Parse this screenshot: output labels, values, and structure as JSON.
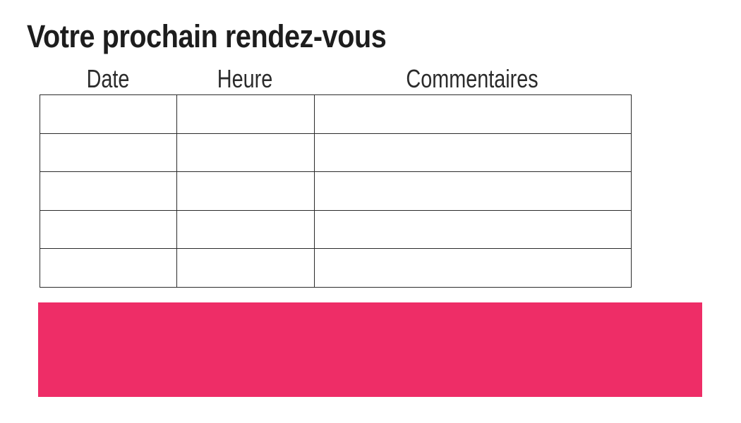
{
  "slide": {
    "title": "Votre prochain rendez-vous"
  },
  "appointments_table": {
    "headers": [
      "Date",
      "Heure",
      "Commentaires"
    ],
    "rows": [
      [
        "",
        "",
        ""
      ],
      [
        "",
        "",
        ""
      ],
      [
        "",
        "",
        ""
      ],
      [
        "",
        "",
        ""
      ],
      [
        "",
        "",
        ""
      ]
    ]
  },
  "colors": {
    "accent_pink": "#ee2d67",
    "table_border": "#2b2b2b",
    "text_dark": "#1d1d1d"
  }
}
